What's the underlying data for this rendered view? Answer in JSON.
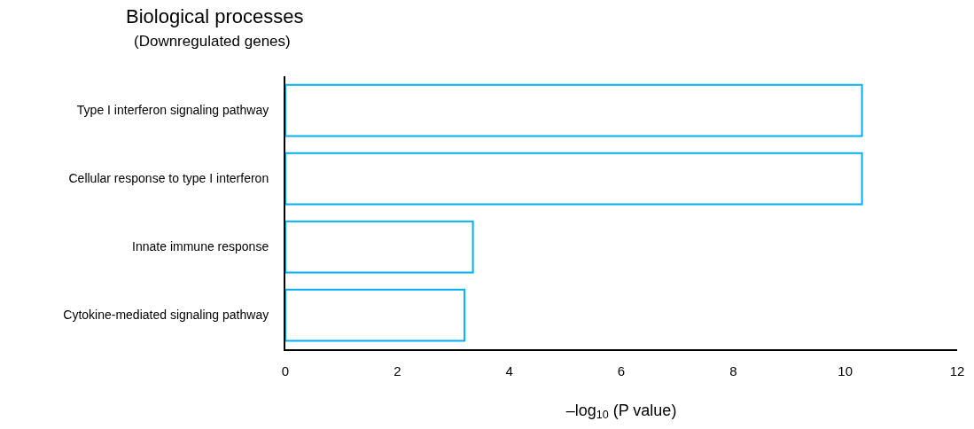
{
  "chart_data": {
    "type": "bar",
    "orientation": "horizontal",
    "title": "Biological processes",
    "subtitle": "(Downregulated genes)",
    "xlabel": "–log$_{10}$ (P value)",
    "categories": [
      "Type I interferon signaling pathway",
      "Cellular response to type I interferon",
      "Innate immune response",
      "Cytokine-mediated signaling pathway"
    ],
    "values": [
      10.3,
      10.3,
      3.35,
      3.2
    ],
    "color": "#00b0f0",
    "xlim": [
      0,
      12
    ],
    "xticks": [
      0,
      2,
      4,
      6,
      8,
      10,
      12
    ]
  }
}
